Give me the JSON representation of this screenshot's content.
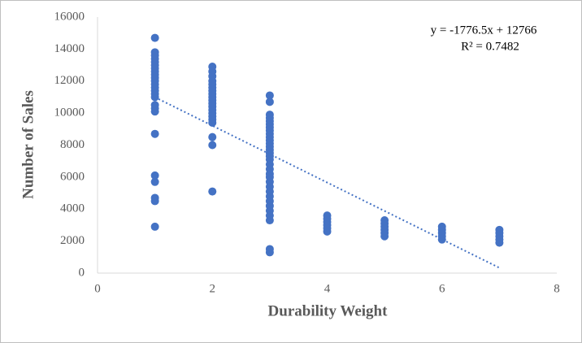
{
  "chart_data": {
    "type": "scatter",
    "x_label": "Durability Weight",
    "y_label": "Number of Sales",
    "xlim": [
      0,
      8
    ],
    "xticks": [
      0,
      2,
      4,
      6,
      8
    ],
    "ylim": [
      0,
      16000
    ],
    "yticks": [
      0,
      2000,
      4000,
      6000,
      8000,
      10000,
      12000,
      14000,
      16000
    ],
    "grid": false,
    "color": "#4472c4",
    "x": [
      1,
      1,
      1,
      1,
      1,
      1,
      1,
      1,
      1,
      1,
      1,
      1,
      1,
      1,
      1,
      1,
      1,
      1,
      1,
      1,
      1,
      1,
      1,
      1,
      1,
      2,
      2,
      2,
      2,
      2,
      2,
      2,
      2,
      2,
      2,
      2,
      2,
      2,
      2,
      2,
      2,
      2,
      2,
      2,
      2,
      3,
      3,
      3,
      3,
      3,
      3,
      3,
      3,
      3,
      3,
      3,
      3,
      3,
      3,
      3,
      3,
      3,
      3,
      3,
      3,
      3,
      3,
      3,
      3,
      3,
      3,
      3,
      3,
      3,
      3,
      3,
      3,
      4,
      4,
      4,
      4,
      4,
      4,
      5,
      5,
      5,
      5,
      5,
      5,
      6,
      6,
      6,
      6,
      6,
      7,
      7,
      7,
      7,
      7
    ],
    "values": [
      14700,
      13800,
      13600,
      13400,
      13200,
      13000,
      12800,
      12600,
      12400,
      12200,
      12000,
      11800,
      11600,
      11400,
      11200,
      11000,
      10500,
      10300,
      10100,
      8700,
      6100,
      5700,
      4700,
      4500,
      2900,
      12900,
      12600,
      12300,
      12000,
      11800,
      11600,
      11400,
      11200,
      11000,
      10800,
      10600,
      10400,
      10200,
      10000,
      9800,
      9600,
      9400,
      8500,
      8000,
      5100,
      11100,
      10700,
      9900,
      9700,
      9500,
      9300,
      9100,
      8900,
      8700,
      8500,
      8300,
      8100,
      7900,
      7700,
      7500,
      7300,
      7100,
      6800,
      6500,
      6200,
      6000,
      5700,
      5400,
      5100,
      4800,
      4500,
      4200,
      3900,
      3600,
      3300,
      1500,
      1300,
      3600,
      3400,
      3200,
      3000,
      2800,
      2600,
      3300,
      3100,
      2900,
      2700,
      2500,
      2300,
      2900,
      2700,
      2500,
      2300,
      2100,
      2700,
      2500,
      2300,
      2100,
      1900
    ],
    "trendline": {
      "label": "y = -1776.5x + 12766",
      "r2_label": "R² = 0.7482",
      "slope": -1776.5,
      "intercept": 12766
    }
  }
}
